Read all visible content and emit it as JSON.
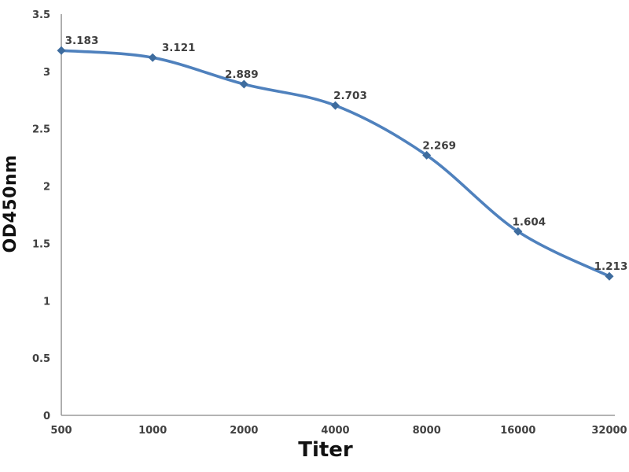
{
  "chart_data": {
    "type": "line",
    "title": "",
    "xlabel": "Titer",
    "ylabel": "OD450nm",
    "categories": [
      "500",
      "1000",
      "2000",
      "4000",
      "8000",
      "16000",
      "32000"
    ],
    "values": [
      3.183,
      3.121,
      2.889,
      2.703,
      2.269,
      1.604,
      1.213
    ],
    "value_labels": [
      "3.183",
      "3.121",
      "2.889",
      "2.703",
      "2.269",
      "1.604",
      "1.213"
    ],
    "ylim": [
      0,
      3.5
    ],
    "yticks": [
      0,
      0.5,
      1,
      1.5,
      2,
      2.5,
      3,
      3.5
    ],
    "ytick_labels": [
      "0",
      "0.5",
      "1",
      "1.5",
      "2",
      "2.5",
      "3",
      "3.5"
    ],
    "grid": false,
    "legend": "none",
    "line_style": "smooth",
    "marker": "diamond",
    "colors": {
      "line": "#4F81BD",
      "marker": "#3E6C9E",
      "axis": "#9A9A9A",
      "tick_text": "#404040",
      "data_label_text": "#3F3F3F",
      "axis_title_text": "#111111",
      "background": "#FFFFFF"
    }
  }
}
